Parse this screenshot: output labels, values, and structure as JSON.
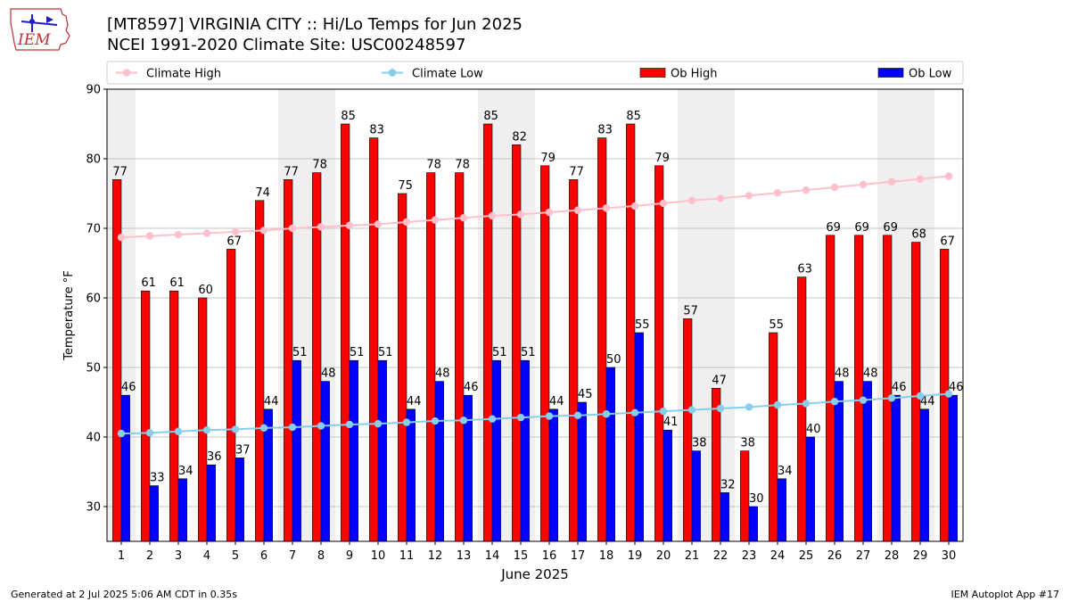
{
  "header": {
    "title_line1": "[MT8597] VIRGINIA CITY :: Hi/Lo Temps for Jun 2025",
    "title_line2": "NCEI 1991-2020 Climate Site: USC00248597",
    "logo_text": "IEM"
  },
  "footer": {
    "generated": "Generated at 2 Jul 2025 5:06 AM CDT in 0.35s",
    "app": "IEM Autoplot App #17"
  },
  "chart_data": {
    "type": "bar",
    "xlabel": "June 2025",
    "ylabel": "Temperature °F",
    "ylim": [
      25,
      90
    ],
    "yticks": [
      30,
      40,
      50,
      60,
      70,
      80,
      90
    ],
    "grid": true,
    "legend_position": "top",
    "categories": [
      "1",
      "2",
      "3",
      "4",
      "5",
      "6",
      "7",
      "8",
      "9",
      "10",
      "11",
      "12",
      "13",
      "14",
      "15",
      "16",
      "17",
      "18",
      "19",
      "20",
      "21",
      "22",
      "23",
      "24",
      "25",
      "26",
      "27",
      "28",
      "29",
      "30"
    ],
    "weekend_days": [
      1,
      7,
      8,
      14,
      15,
      21,
      22,
      28,
      29
    ],
    "series": [
      {
        "name": "Climate High",
        "kind": "line",
        "color": "#ffc0cb",
        "values": [
          68.7,
          68.9,
          69.1,
          69.3,
          69.5,
          69.7,
          70.0,
          70.2,
          70.4,
          70.6,
          70.9,
          71.2,
          71.5,
          71.8,
          72.0,
          72.3,
          72.6,
          72.9,
          73.2,
          73.6,
          74.0,
          74.3,
          74.7,
          75.1,
          75.5,
          75.9,
          76.3,
          76.7,
          77.1,
          77.5
        ]
      },
      {
        "name": "Climate Low",
        "kind": "line",
        "color": "#87ceeb",
        "values": [
          40.5,
          40.6,
          40.8,
          41.0,
          41.1,
          41.3,
          41.4,
          41.6,
          41.8,
          41.9,
          42.1,
          42.3,
          42.4,
          42.6,
          42.8,
          43.0,
          43.1,
          43.3,
          43.5,
          43.7,
          43.9,
          44.1,
          44.3,
          44.6,
          44.8,
          45.1,
          45.3,
          45.6,
          45.9,
          46.2
        ]
      },
      {
        "name": "Ob High",
        "kind": "bar",
        "color": "#ff0000",
        "values": [
          77,
          61,
          61,
          60,
          67,
          74,
          77,
          78,
          85,
          83,
          75,
          78,
          78,
          85,
          82,
          79,
          77,
          83,
          85,
          79,
          57,
          47,
          38,
          55,
          63,
          69,
          69,
          69,
          68,
          67
        ]
      },
      {
        "name": "Ob Low",
        "kind": "bar",
        "color": "#0000ff",
        "values": [
          46,
          33,
          34,
          36,
          37,
          44,
          51,
          48,
          51,
          51,
          44,
          48,
          46,
          51,
          51,
          44,
          45,
          50,
          55,
          41,
          38,
          32,
          30,
          34,
          40,
          48,
          48,
          46,
          44,
          46
        ]
      }
    ]
  }
}
